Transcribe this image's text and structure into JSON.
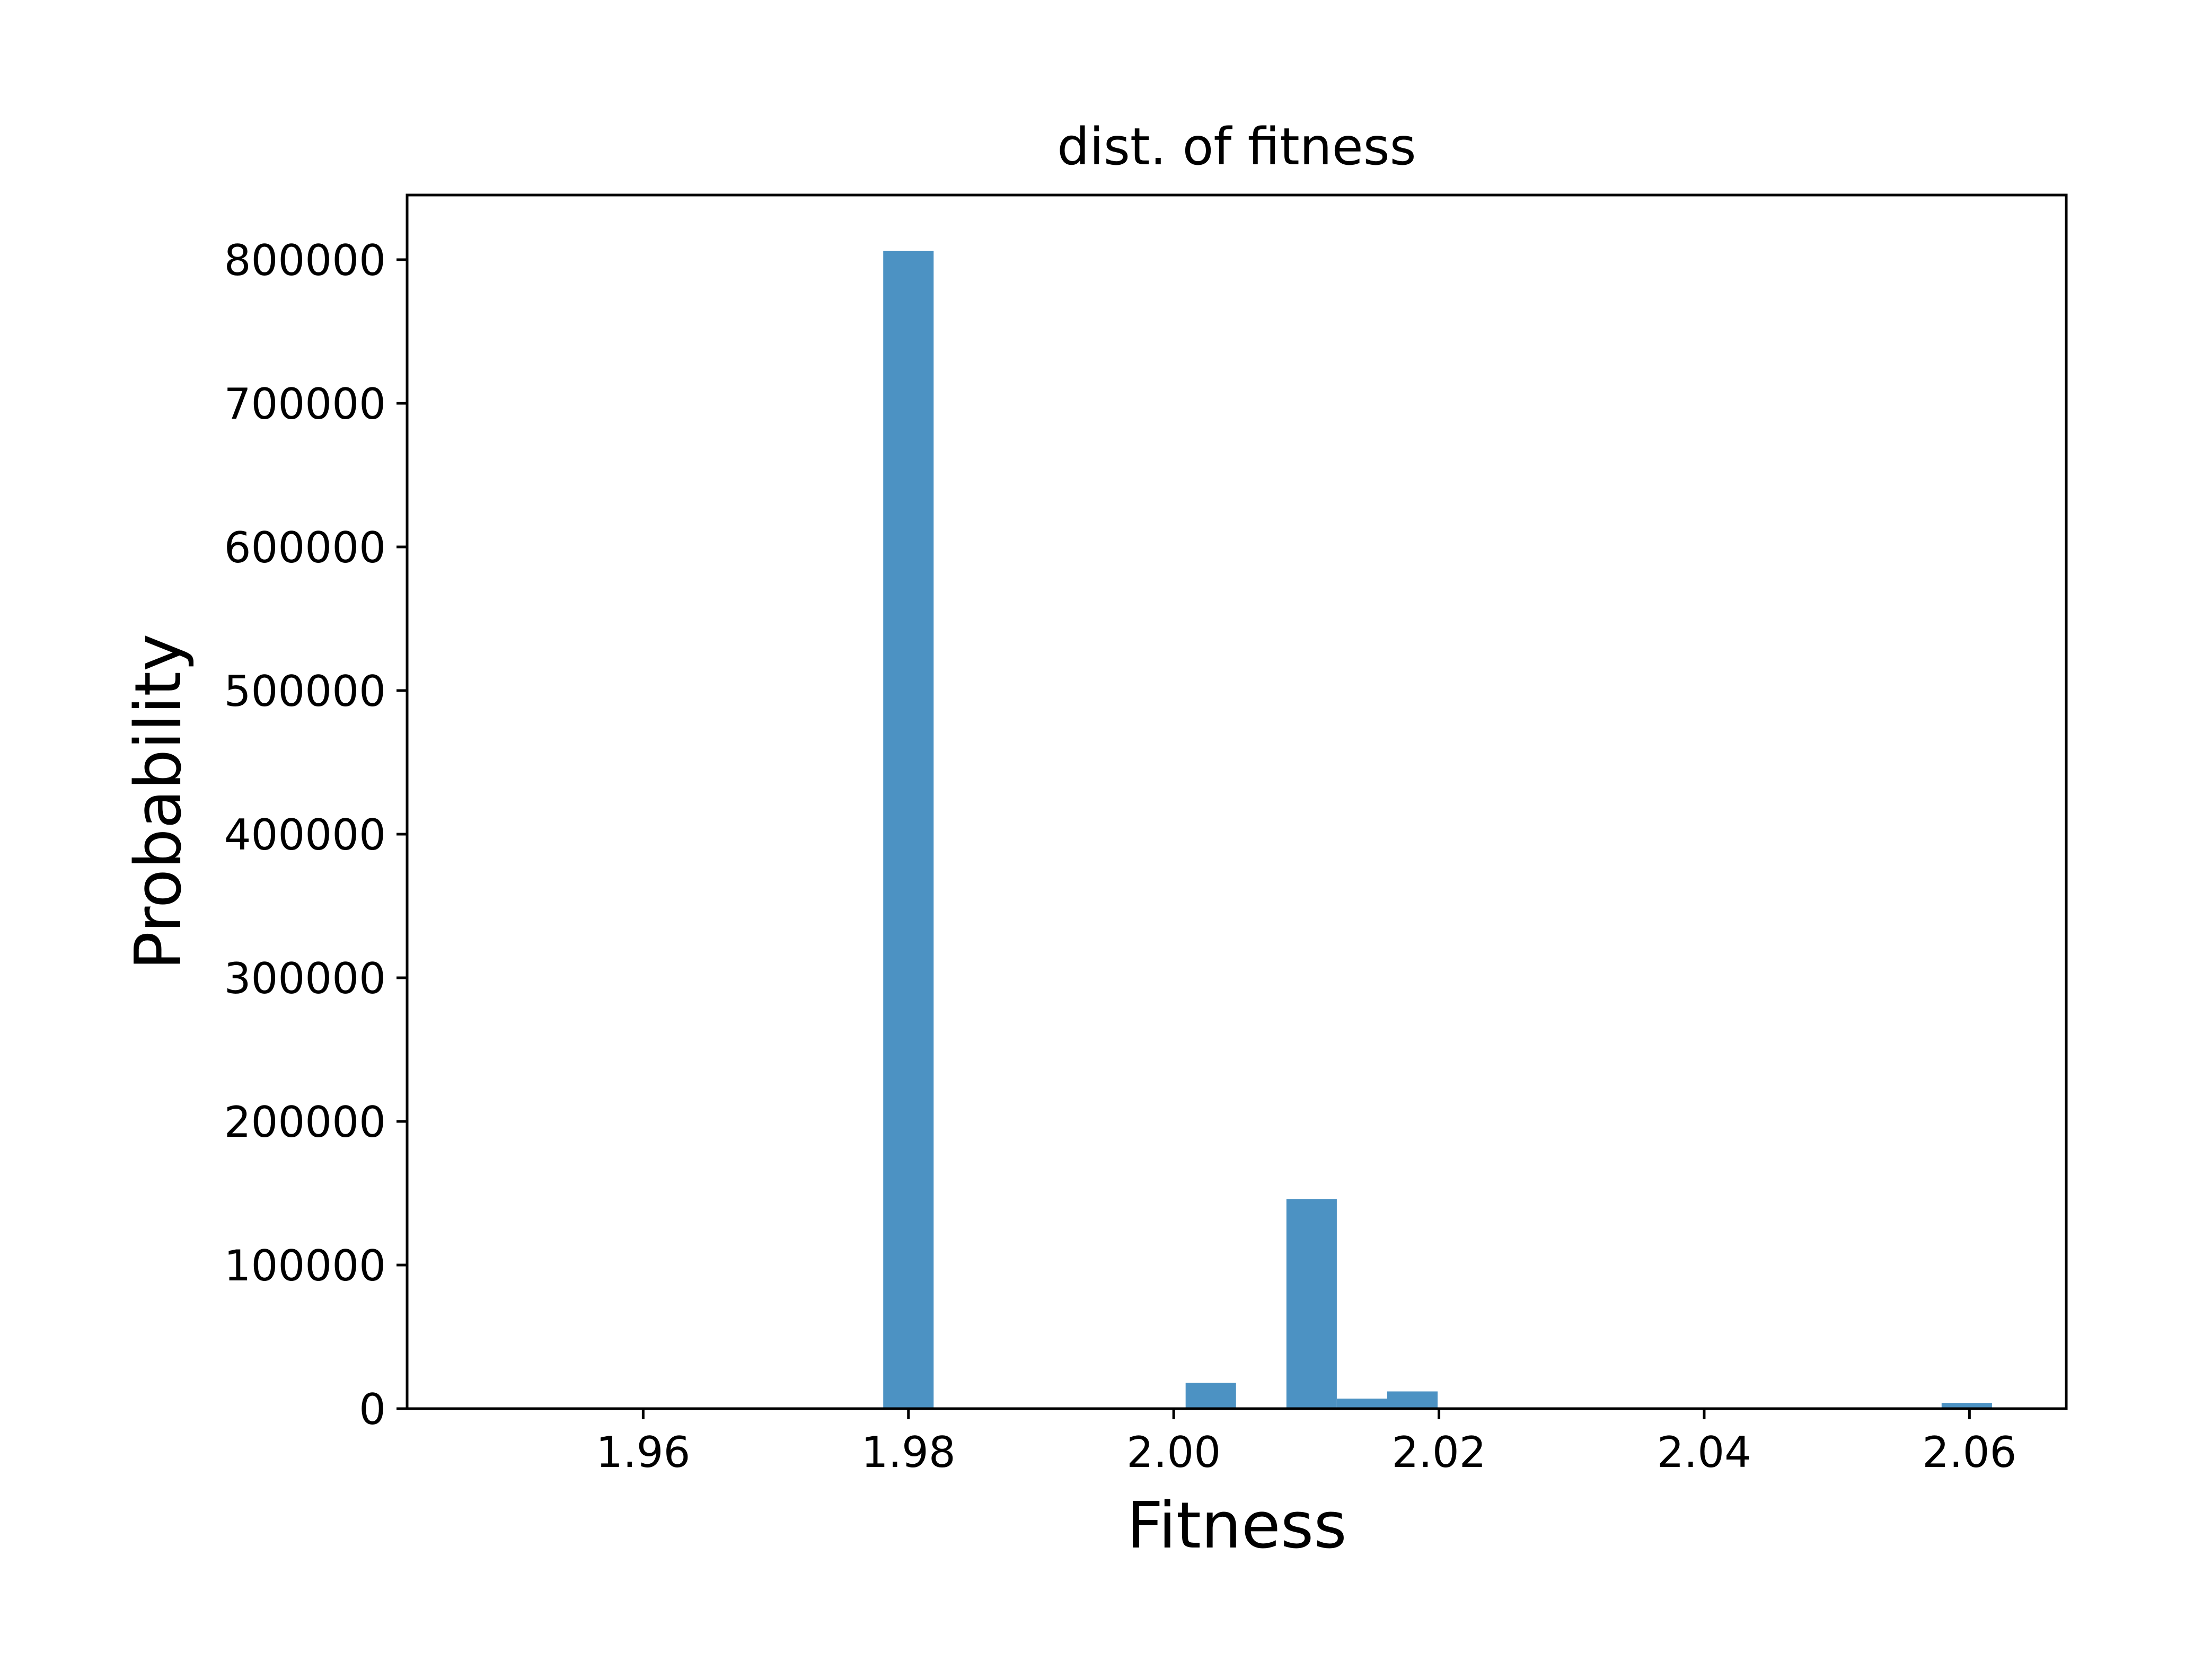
{
  "chart_data": {
    "type": "bar",
    "title": "dist. of fitness",
    "xlabel": "Fitness",
    "ylabel": "Probability",
    "xlim": [
      1.9422,
      2.0673
    ],
    "ylim": [
      0,
      845000
    ],
    "grid": false,
    "colors": {
      "bar": "#4c92c3",
      "axes": "#000000"
    },
    "x_ticks": [
      {
        "value": 1.96,
        "label": "1.96"
      },
      {
        "value": 1.98,
        "label": "1.98"
      },
      {
        "value": 2.0,
        "label": "2.00"
      },
      {
        "value": 2.02,
        "label": "2.02"
      },
      {
        "value": 2.04,
        "label": "2.04"
      },
      {
        "value": 2.06,
        "label": "2.06"
      }
    ],
    "y_ticks": [
      {
        "value": 0,
        "label": "0"
      },
      {
        "value": 100000,
        "label": "100000"
      },
      {
        "value": 200000,
        "label": "200000"
      },
      {
        "value": 300000,
        "label": "300000"
      },
      {
        "value": 400000,
        "label": "400000"
      },
      {
        "value": 500000,
        "label": "500000"
      },
      {
        "value": 600000,
        "label": "600000"
      },
      {
        "value": 700000,
        "label": "700000"
      },
      {
        "value": 800000,
        "label": "800000"
      }
    ],
    "bars": [
      {
        "x0": 1.9781,
        "x1": 1.9819,
        "value": 806000
      },
      {
        "x0": 2.0009,
        "x1": 2.0047,
        "value": 18000
      },
      {
        "x0": 2.0085,
        "x1": 2.0123,
        "value": 146000
      },
      {
        "x0": 2.0123,
        "x1": 2.0161,
        "value": 7000
      },
      {
        "x0": 2.0161,
        "x1": 2.0199,
        "value": 12000
      },
      {
        "x0": 2.0579,
        "x1": 2.0617,
        "value": 4000
      }
    ]
  }
}
